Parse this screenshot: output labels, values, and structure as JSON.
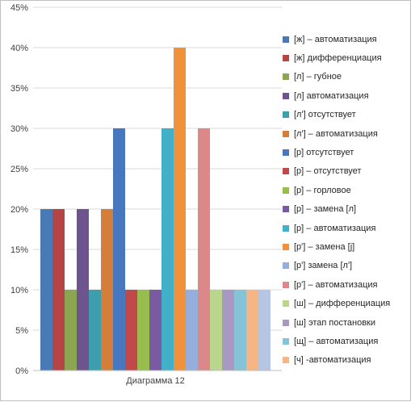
{
  "chart_data": {
    "type": "bar",
    "title": "",
    "xlabel": "",
    "ylabel": "",
    "categories": [
      "Диаграмма 12"
    ],
    "ylim": [
      0,
      45
    ],
    "yticks": [
      "0%",
      "5%",
      "10%",
      "15%",
      "20%",
      "25%",
      "30%",
      "35%",
      "40%",
      "45%"
    ],
    "grid": true,
    "legend_position": "right",
    "series": [
      {
        "name": "[ж] – автоматизация",
        "values": [
          20
        ],
        "color": "#4a7ab5"
      },
      {
        "name": "[ж]    дифференциация",
        "values": [
          20
        ],
        "color": "#b54545"
      },
      {
        "name": "[л] – губное",
        "values": [
          10
        ],
        "color": "#8ca553"
      },
      {
        "name": "[л]    автоматизация",
        "values": [
          20
        ],
        "color": "#6e548e"
      },
      {
        "name": "[л']    отсутствует",
        "values": [
          10
        ],
        "color": "#3d9eae"
      },
      {
        "name": "[л'] – автоматизация",
        "values": [
          20
        ],
        "color": "#d37f3b"
      },
      {
        "name": "[р]    отсутствует",
        "values": [
          30
        ],
        "color": "#4677bf"
      },
      {
        "name": "[р] – отсутствует",
        "values": [
          10
        ],
        "color": "#c14949"
      },
      {
        "name": "[р] – горловое",
        "values": [
          10
        ],
        "color": "#97bd4c"
      },
      {
        "name": "[р] – замена [л]",
        "values": [
          10
        ],
        "color": "#7a5ba3"
      },
      {
        "name": "[р] – автоматизация",
        "values": [
          30
        ],
        "color": "#42b0c8"
      },
      {
        "name": "[р'] – замена [j]",
        "values": [
          40
        ],
        "color": "#f0923c"
      },
      {
        "name": "[р']    замена [л']",
        "values": [
          10
        ],
        "color": "#96aedb"
      },
      {
        "name": "[р'] – автоматизация",
        "values": [
          30
        ],
        "color": "#dd8888"
      },
      {
        "name": "[ш] – дифференциация",
        "values": [
          10
        ],
        "color": "#b9d68c"
      },
      {
        "name": "[ш]    этап постановки",
        "values": [
          10
        ],
        "color": "#a898c2"
      },
      {
        "name": "[щ] – автоматизация",
        "values": [
          10
        ],
        "color": "#84c4d6"
      },
      {
        "name": "[ч] -автоматизация",
        "values": [
          10
        ],
        "color": "#f8b584"
      },
      {
        "name": "",
        "values": [
          10
        ],
        "color": "#b6c6e2"
      }
    ]
  }
}
